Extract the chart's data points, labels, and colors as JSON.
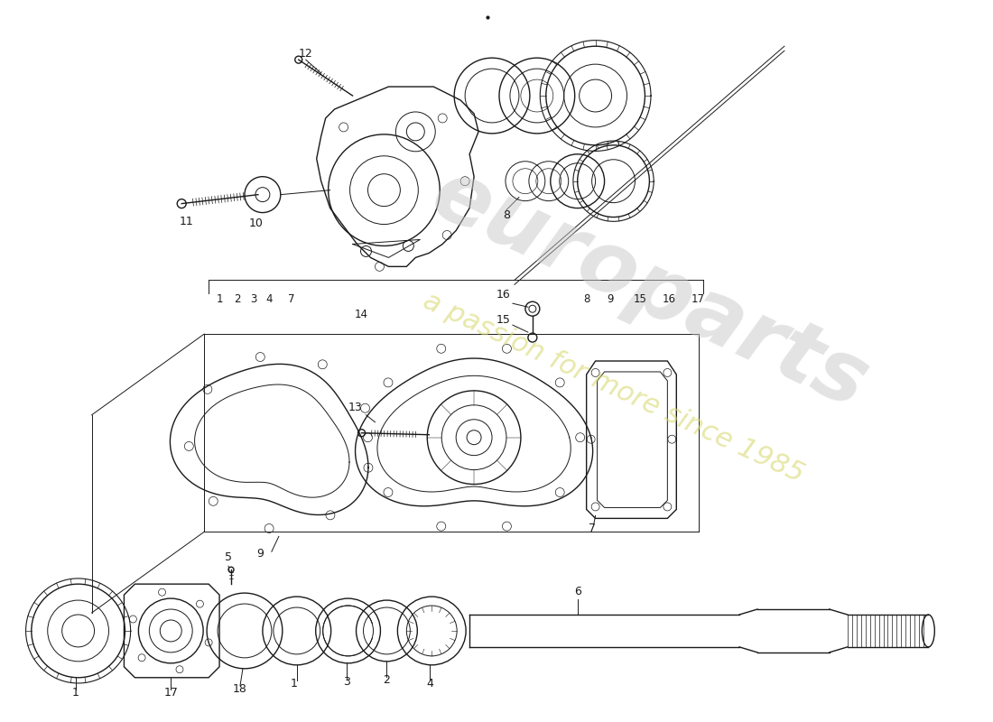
{
  "background_color": "#ffffff",
  "line_color": "#1a1a1a",
  "label_color": "#1a1a1a",
  "watermark_color1": "#c8c8c8",
  "watermark_color2": "#d8d870",
  "fig_width": 11.0,
  "fig_height": 8.0,
  "dpi": 100
}
